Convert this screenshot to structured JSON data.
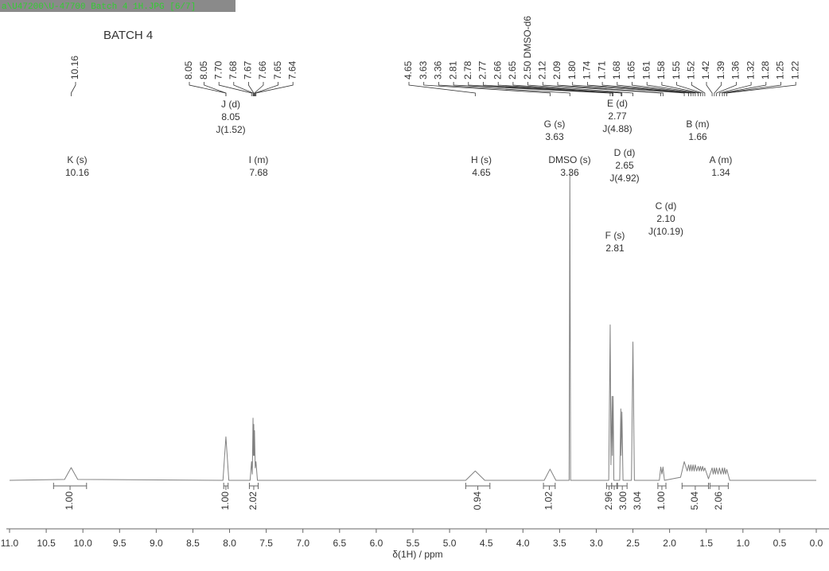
{
  "header": "a\\U47200\\U-47700 Batch 4 1H.JPG [6/7]",
  "chart_data": {
    "type": "line",
    "title": "BATCH 4",
    "x_label": "δ(1H) / ppm",
    "xlim": [
      11,
      0
    ],
    "ylim": [
      0,
      100
    ],
    "color": "#808080",
    "xticks": [
      {
        "value": 11,
        "label": "11.0"
      },
      10.5,
      {
        "value": 10,
        "label": "10.0"
      },
      9.5,
      {
        "value": 9,
        "label": "9.0"
      },
      8.5,
      {
        "value": 8,
        "label": "8.0"
      },
      7.5,
      {
        "value": 7,
        "label": "7.0"
      },
      6.5,
      {
        "value": 6,
        "label": "6.0"
      },
      5.5,
      {
        "value": 5,
        "label": "5.0"
      },
      4.5,
      {
        "value": 4,
        "label": "4.0"
      },
      3.5,
      {
        "value": 3,
        "label": "3.0"
      },
      2.5,
      {
        "value": 2,
        "label": "2.0"
      },
      1.5,
      {
        "value": 1,
        "label": "1.0"
      },
      0.5,
      {
        "value": 0,
        "label": "0.0"
      }
    ],
    "x": [
      11.0,
      10.25,
      10.16,
      10.07,
      8.09,
      8.05,
      8.01,
      7.72,
      7.7,
      7.69,
      7.68,
      7.675,
      7.67,
      7.665,
      7.66,
      7.65,
      7.64,
      7.62,
      4.78,
      4.65,
      4.52,
      3.71,
      3.63,
      3.55,
      3.37,
      3.36,
      3.35,
      2.83,
      2.81,
      2.8,
      2.785,
      2.78,
      2.77,
      2.76,
      2.68,
      2.665,
      2.66,
      2.65,
      2.635,
      2.52,
      2.5,
      2.48,
      2.14,
      2.12,
      2.105,
      2.09,
      2.07,
      1.85,
      1.8,
      1.76,
      1.74,
      1.725,
      1.71,
      1.695,
      1.68,
      1.665,
      1.65,
      1.63,
      1.61,
      1.595,
      1.58,
      1.565,
      1.55,
      1.535,
      1.52,
      1.47,
      1.42,
      1.405,
      1.39,
      1.375,
      1.36,
      1.34,
      1.32,
      1.3,
      1.28,
      1.265,
      1.25,
      1.235,
      1.22,
      1.18,
      0.0
    ],
    "values": [
      0,
      0.3,
      4.1,
      0.3,
      0,
      14,
      0,
      0,
      6,
      2,
      20,
      8,
      18,
      8,
      16,
      4,
      6,
      0,
      0,
      3,
      0,
      0,
      3.6,
      0,
      0,
      100,
      0,
      0,
      50,
      5,
      27,
      8,
      27,
      0,
      0,
      23,
      8,
      22,
      0,
      0,
      44.5,
      0,
      0,
      4.3,
      2,
      4.3,
      0,
      1,
      6,
      3,
      5,
      3,
      5,
      3,
      5,
      3,
      5,
      3,
      4.5,
      3,
      4.5,
      3,
      4.5,
      3,
      4,
      0.5,
      4,
      2,
      4,
      2,
      4,
      2,
      4,
      2,
      4,
      2,
      4,
      2,
      3.5,
      0,
      0
    ],
    "peak_labels": [
      [
        10.16
      ],
      [
        8.05,
        8.05,
        {
          "value": 7.7,
          "label": "7.70"
        },
        7.68,
        7.67,
        7.66,
        7.65,
        7.64
      ],
      [
        4.65,
        3.63,
        3.36,
        2.81,
        2.78,
        2.77,
        2.66,
        2.65,
        {
          "value": 2.5,
          "label": "2.50 DMSO-d6"
        },
        2.12,
        2.09,
        {
          "value": 1.8,
          "label": "1.80"
        },
        1.74,
        1.71,
        1.68,
        1.65,
        1.61,
        1.58,
        1.55,
        1.52,
        1.42,
        1.39,
        1.36,
        1.32,
        1.28,
        1.25,
        1.22
      ]
    ],
    "multiplets": [
      {
        "name": "K (s)",
        "shift": 10.16
      },
      {
        "name": "J (d)",
        "shift": 8.05,
        "coupling": "J(1.52)"
      },
      {
        "name": "I (m)",
        "shift": 7.68
      },
      {
        "name": "H (s)",
        "shift": 4.65
      },
      {
        "name": "G (s)",
        "shift": 3.63
      },
      {
        "name": "DMSO (s)",
        "shift": 3.36
      },
      {
        "name": "E (d)",
        "shift": 2.77,
        "coupling": "J(4.88)"
      },
      {
        "name": "D (d)",
        "shift": 2.65,
        "coupling": "J(4.92)"
      },
      {
        "name": "B (m)",
        "shift": 1.66
      },
      {
        "name": "A (m)",
        "shift": 1.34
      },
      {
        "name": "C (d)",
        "shift": {
          "value": 2.1,
          "label": "2.10"
        },
        "coupling": "J(10.19)"
      },
      {
        "name": "F (s)",
        "shift": 2.81
      }
    ],
    "integrals": [
      {
        "value": 1,
        "label": "1.00",
        "from": 10.4,
        "to": 9.95
      },
      {
        "value": 1,
        "label": "1.00",
        "from": 8.08,
        "to": 8.02
      },
      {
        "value": 2.02,
        "label": "2.02",
        "from": 7.73,
        "to": 7.61
      },
      {
        "value": 0.94,
        "label": "0.94",
        "from": 4.78,
        "to": 4.45
      },
      {
        "value": 1.02,
        "label": "1.02",
        "from": 3.72,
        "to": 3.56
      },
      {
        "value": 2.96,
        "label": "2.96",
        "from": 2.86,
        "to": 2.79
      },
      {
        "value": 3,
        "label": "3.00",
        "from": 2.79,
        "to": 2.72
      },
      {
        "value": 3.04,
        "label": "3.04",
        "from": 2.71,
        "to": 2.58
      },
      {
        "value": 1,
        "label": "1.00",
        "from": 2.16,
        "to": 2.05
      },
      {
        "value": 5.04,
        "label": "5.04",
        "from": 1.83,
        "to": 1.47
      },
      {
        "value": 2.06,
        "label": "2.06",
        "from": 1.45,
        "to": 1.2
      }
    ]
  }
}
